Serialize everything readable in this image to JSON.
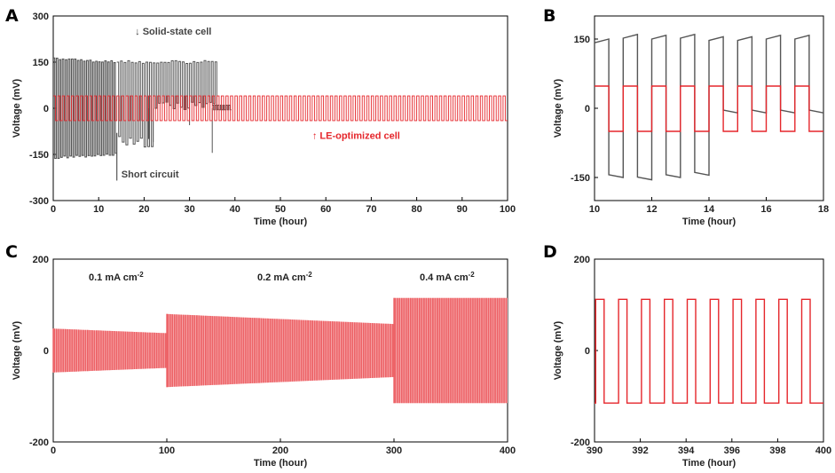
{
  "chart_data": [
    {
      "panel": "A",
      "type": "line",
      "xlabel": "Time (hour)",
      "ylabel": "Voltage (mV)",
      "xlim": [
        0,
        100
      ],
      "ylim": [
        -300,
        300
      ],
      "xticks": [
        0,
        10,
        20,
        30,
        40,
        50,
        60,
        70,
        80,
        90,
        100
      ],
      "yticks": [
        -300,
        -150,
        0,
        150,
        300
      ],
      "series": [
        {
          "name": "Solid-state cell",
          "color": "#555555",
          "t_start": 0,
          "t_end": 39,
          "amplitude_start": 160,
          "amplitude_end": 150,
          "period_h": 1,
          "short_circuit_h": 14
        },
        {
          "name": "LE-optimized cell",
          "color": "#e5262b",
          "t_start": 0,
          "t_end": 100,
          "amplitude_start": 40,
          "amplitude_end": 40,
          "period_h": 1
        }
      ],
      "annotations": [
        {
          "text": "↓ Solid-state cell",
          "color": "#444444"
        },
        {
          "text": "↑ LE-optimized cell",
          "color": "#e5262b"
        },
        {
          "text": "Short circuit",
          "color": "#444444"
        }
      ]
    },
    {
      "panel": "B",
      "type": "line",
      "xlabel": "Time (hour)",
      "ylabel": "Voltage (mV)",
      "xlim": [
        10,
        18
      ],
      "ylim": [
        -200,
        200
      ],
      "xticks": [
        10,
        12,
        14,
        16,
        18
      ],
      "yticks": [
        -150,
        0,
        150
      ],
      "series": [
        {
          "name": "Solid-state cell",
          "color": "#555555",
          "levels_mV": [
            150,
            -150,
            160,
            -155,
            158,
            -150,
            160,
            -145,
            155,
            -10,
            155,
            -10,
            158,
            -10,
            158,
            -10
          ]
        },
        {
          "name": "LE-optimized cell",
          "color": "#e5262b",
          "levels_mV": [
            48,
            -50,
            48,
            -50,
            48,
            -50,
            48,
            -50,
            48,
            -50,
            48,
            -50,
            48,
            -50,
            48,
            -50
          ]
        }
      ]
    },
    {
      "panel": "C",
      "type": "area",
      "xlabel": "Time (hour)",
      "ylabel": "Voltage (mV)",
      "xlim": [
        0,
        400
      ],
      "ylim": [
        -200,
        200
      ],
      "xticks": [
        0,
        100,
        200,
        300,
        400
      ],
      "yticks": [
        -200,
        0,
        200
      ],
      "series": [
        {
          "name": "0.1 mA cm-2",
          "color": "#e5262b",
          "t_start": 0,
          "t_end": 100,
          "amplitude_start": 48,
          "amplitude_end": 38
        },
        {
          "name": "0.2 mA cm-2",
          "color": "#e5262b",
          "t_start": 100,
          "t_end": 300,
          "amplitude_start": 80,
          "amplitude_end": 58
        },
        {
          "name": "0.4 mA cm-2",
          "color": "#e5262b",
          "t_start": 300,
          "t_end": 400,
          "amplitude_start": 115,
          "amplitude_end": 115
        }
      ],
      "annotations": [
        {
          "text": "0.1 mA cm",
          "sup": "-2"
        },
        {
          "text": "0.2 mA cm",
          "sup": "-2"
        },
        {
          "text": "0.4 mA cm",
          "sup": "-2"
        }
      ]
    },
    {
      "panel": "D",
      "type": "line",
      "xlabel": "Time (hour)",
      "ylabel": "Voltage (mV)",
      "xlim": [
        390,
        400
      ],
      "ylim": [
        -200,
        200
      ],
      "xticks": [
        390,
        392,
        394,
        396,
        398,
        400
      ],
      "yticks": [
        -200,
        0,
        200
      ],
      "series": [
        {
          "name": "0.4 mA cm-2",
          "color": "#e5262b",
          "t_start": 390,
          "t_end": 400,
          "period_h": 1,
          "high_mV": 112,
          "low_mV": -115
        }
      ]
    }
  ],
  "colors": {
    "red": "#e5262b",
    "gray": "#555555",
    "axis": "#000000"
  }
}
